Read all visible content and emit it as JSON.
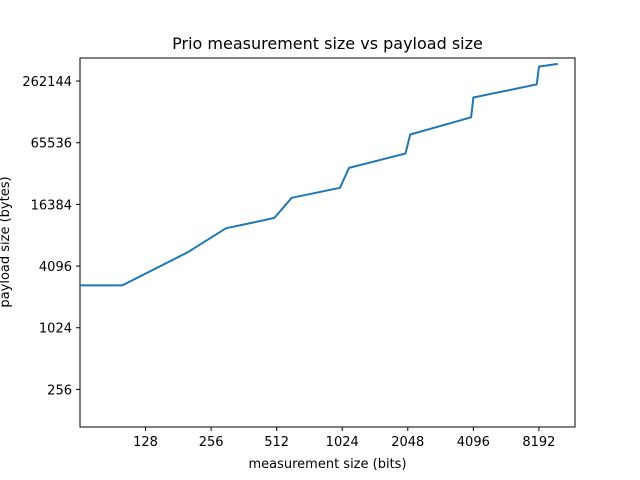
{
  "chart_data": {
    "type": "line",
    "title": "Prio measurement size vs payload size",
    "xlabel": "measurement size (bits)",
    "ylabel": "payload size (bytes)",
    "xscale": "log2",
    "yscale": "log2",
    "xlim": [
      64,
      12000
    ],
    "ylim": [
      110,
      440000
    ],
    "xticks": [
      128,
      256,
      512,
      1024,
      2048,
      4096,
      8192
    ],
    "xtick_labels": [
      "128",
      "256",
      "512",
      "1024",
      "2048",
      "4096",
      "8192"
    ],
    "yticks": [
      256,
      1024,
      4096,
      16384,
      65536,
      262144
    ],
    "ytick_labels": [
      "256",
      "1024",
      "4096",
      "16384",
      "65536",
      "262144"
    ],
    "grid": false,
    "series": [
      {
        "name": "payload size",
        "color": "#1f77b4",
        "x": [
          64,
          100,
          200,
          300,
          400,
          500,
          600,
          1000,
          1100,
          2000,
          2100,
          4000,
          4100,
          8000,
          8200,
          10000
        ],
        "y": [
          2650,
          2650,
          5600,
          9600,
          10900,
          12100,
          19000,
          23800,
          37200,
          51400,
          78800,
          116000,
          181000,
          243000,
          363000,
          385000
        ]
      }
    ]
  }
}
